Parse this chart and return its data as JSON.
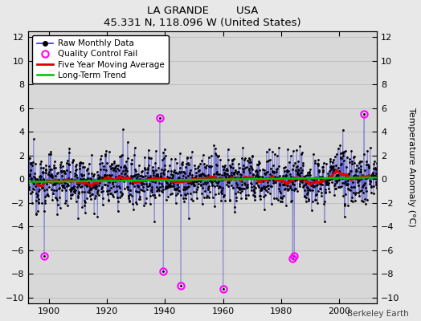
{
  "title": "LA GRANDE        USA",
  "subtitle": "45.331 N, 118.096 W (United States)",
  "ylabel": "Temperature Anomaly (°C)",
  "credit": "Berkeley Earth",
  "xlim": [
    1893,
    2013
  ],
  "ylim": [
    -10.5,
    12.5
  ],
  "yticks": [
    -10,
    -8,
    -6,
    -4,
    -2,
    0,
    2,
    4,
    6,
    8,
    10,
    12
  ],
  "xticks": [
    1900,
    1920,
    1940,
    1960,
    1980,
    2000
  ],
  "raw_color": "#3333cc",
  "ma_color": "#dd0000",
  "trend_color": "#00bb00",
  "qc_color": "#ff00ff",
  "bg_color": "#d8d8d8",
  "fig_color": "#e8e8e8",
  "grid_color": "#bbbbbb",
  "seed": 12345,
  "start_year": 1893,
  "end_year": 2012,
  "noise_std": 1.6,
  "qc_points": [
    {
      "year": 1898.5,
      "value": -6.5
    },
    {
      "year": 1938.3,
      "value": 5.2
    },
    {
      "year": 1939.5,
      "value": -7.8
    },
    {
      "year": 1945.5,
      "value": -9.0
    },
    {
      "year": 1960.0,
      "value": -9.3
    },
    {
      "year": 1984.0,
      "value": -6.7
    },
    {
      "year": 1984.5,
      "value": -6.5
    },
    {
      "year": 2008.5,
      "value": 5.5
    }
  ]
}
